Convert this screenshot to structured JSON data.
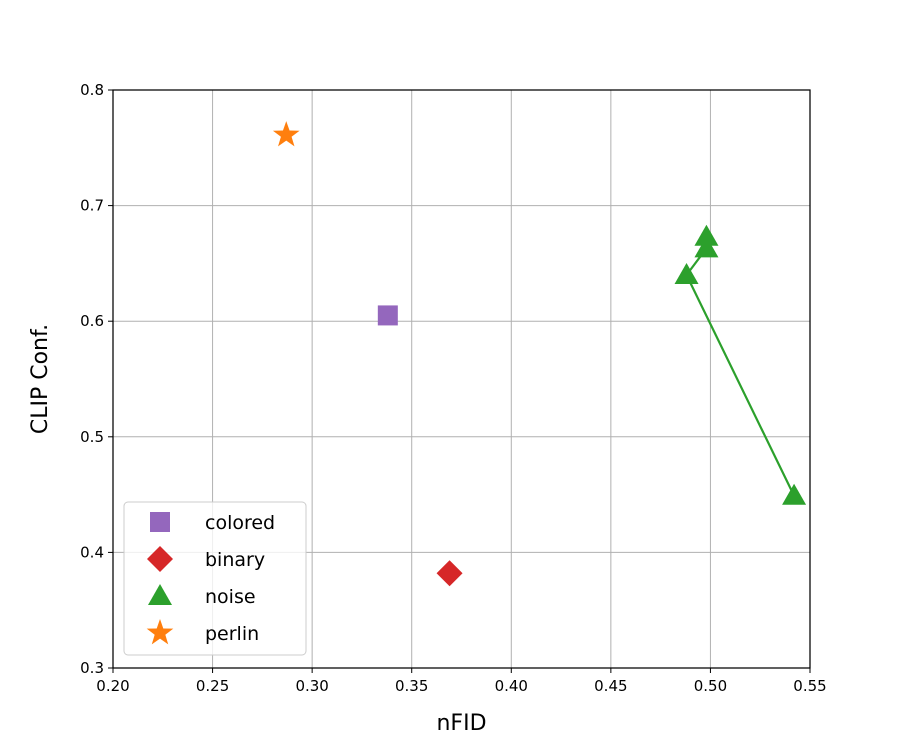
{
  "chart_data": {
    "type": "scatter",
    "title": "",
    "xlabel": "nFID",
    "ylabel": "CLIP Conf.",
    "xlim": [
      0.2,
      0.55
    ],
    "ylim": [
      0.3,
      0.8
    ],
    "xticks": [
      "0.20",
      "0.25",
      "0.30",
      "0.35",
      "0.40",
      "0.45",
      "0.50",
      "0.55"
    ],
    "yticks": [
      "0.3",
      "0.4",
      "0.5",
      "0.6",
      "0.7",
      "0.8"
    ],
    "xtick_values": [
      0.2,
      0.25,
      0.3,
      0.35,
      0.4,
      0.45,
      0.5,
      0.55
    ],
    "ytick_values": [
      0.3,
      0.4,
      0.5,
      0.6,
      0.7,
      0.8
    ],
    "grid": true,
    "legend_position": "lower-left",
    "series": [
      {
        "name": "colored",
        "marker": "square",
        "color": "#9467bd",
        "connected": false,
        "points": [
          {
            "x": 0.338,
            "y": 0.605
          }
        ]
      },
      {
        "name": "binary",
        "marker": "diamond",
        "color": "#d62728",
        "connected": false,
        "points": [
          {
            "x": 0.369,
            "y": 0.382
          }
        ]
      },
      {
        "name": "noise",
        "marker": "triangle",
        "color": "#2ca02c",
        "connected": true,
        "points": [
          {
            "x": 0.542,
            "y": 0.449
          },
          {
            "x": 0.488,
            "y": 0.64
          },
          {
            "x": 0.498,
            "y": 0.663
          },
          {
            "x": 0.498,
            "y": 0.673
          }
        ]
      },
      {
        "name": "perlin",
        "marker": "star",
        "color": "#ff7f0e",
        "connected": false,
        "points": [
          {
            "x": 0.287,
            "y": 0.761
          }
        ]
      }
    ]
  }
}
